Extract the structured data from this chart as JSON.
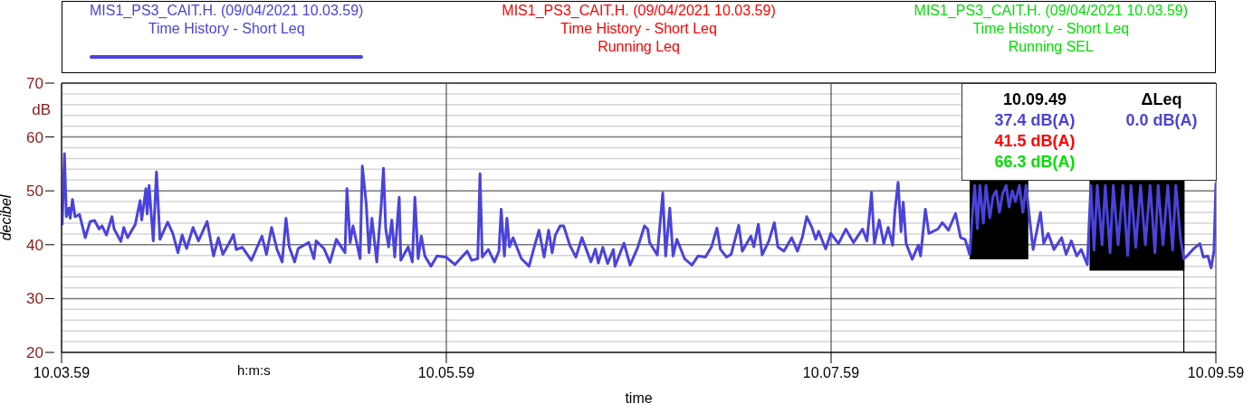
{
  "chart_data": {
    "type": "line",
    "xlabel": "time",
    "ylabel": "decibel",
    "xlim": [
      "2021-04-09T10:03:59",
      "2021-04-09T10:09:59"
    ],
    "xticks": [
      {
        "value": "2021-04-09T10:03:59",
        "label": "10.03.59"
      },
      {
        "value": "2021-04-09T10:05:59",
        "label": "10.05.59"
      },
      {
        "value": "2021-04-09T10:07:59",
        "label": "10.07.59"
      },
      {
        "value": "2021-04-09T10:09:59",
        "label": "10.09.59"
      }
    ],
    "ylim": [
      20,
      70
    ],
    "yticks": [
      20,
      {
        "value": 22,
        "label": null
      },
      {
        "value": 24,
        "label": null
      },
      {
        "value": 26,
        "label": null
      },
      {
        "value": 28,
        "label": null
      },
      30,
      {
        "value": 32,
        "label": null
      },
      {
        "value": 34,
        "label": null
      },
      {
        "value": 36,
        "label": null
      },
      {
        "value": 38,
        "label": null
      },
      40,
      {
        "value": 42,
        "label": null
      },
      {
        "value": 44,
        "label": null
      },
      {
        "value": 46,
        "label": null
      },
      {
        "value": 48,
        "label": null
      },
      50,
      {
        "value": 52,
        "label": null
      },
      {
        "value": 54,
        "label": null
      },
      {
        "value": 56,
        "label": null
      },
      {
        "value": 58,
        "label": null
      },
      60,
      {
        "value": 62,
        "label": null
      },
      {
        "value": 64,
        "label": null
      },
      {
        "value": 66,
        "label": null
      },
      {
        "value": 68,
        "label": null
      },
      70
    ],
    "grid": true,
    "legend": "top",
    "annotations": [
      "dB",
      "h:m:s",
      "37.4 dB(A)",
      "41.5 dB(A)",
      "66.3 dB(A)",
      "ΔLeq",
      "0.0 dB(A)"
    ],
    "ref_lines": [
      {
        "axis": "x",
        "value": "2021-04-09T10:09:49",
        "label": "10.09.49",
        "color": "#000000"
      }
    ],
    "series": [
      {
        "type": "area",
        "color": "#000000",
        "x": [
          "2021-04-09T10:08:42.2",
          "2021-04-09T10:09:00.5",
          "2021-04-09T10:09:10",
          "2021-04-09T10:09:19.6",
          "2021-04-09T10:09:49.2"
        ],
        "values": [
          null,
          null,
          null,
          null,
          null
        ],
        "lower": [
          37.3,
          37.3,
          null,
          35.2,
          35.2
        ],
        "upper": [
          51.9,
          51.9,
          null,
          51.9,
          51.9
        ]
      },
      {
        "name": "MIS1_PS3_CAIT.H. (09/04/2021 10.03.59)\nTime History - Short Leq",
        "color": "#4a43dc",
        "x": [
          "2021-04-09T10:03:59.2",
          "2021-04-09T10:03:59.9",
          "2021-04-09T10:04:00.5",
          "2021-04-09T10:04:01.3",
          "2021-04-09T10:04:01.7",
          "2021-04-09T10:04:02.4",
          "2021-04-09T10:04:03.2",
          "2021-04-09T10:04:04.6",
          "2021-04-09T10:04:06.4",
          "2021-04-09T10:04:07.9",
          "2021-04-09T10:04:09.3",
          "2021-04-09T10:04:10.7",
          "2021-04-09T10:04:11.6",
          "2021-04-09T10:04:13.0",
          "2021-04-09T10:04:14.7",
          "2021-04-09T10:04:15.4",
          "2021-04-09T10:04:17.5",
          "2021-04-09T10:04:18.4",
          "2021-04-09T10:04:19.6",
          "2021-04-09T10:04:22.0",
          "2021-04-09T10:04:23.5",
          "2021-04-09T10:04:24.0",
          "2021-04-09T10:04:25.3",
          "2021-04-09T10:04:25.7",
          "2021-04-09T10:04:26.3",
          "2021-04-09T10:04:27.6",
          "2021-04-09T10:04:28.6",
          "2021-04-09T10:04:29.7",
          "2021-04-09T10:04:32.1",
          "2021-04-09T10:04:33.7",
          "2021-04-09T10:04:35.3",
          "2021-04-09T10:04:36.6",
          "2021-04-09T10:04:38.0",
          "2021-04-09T10:04:40.0",
          "2021-04-09T10:04:41.7",
          "2021-04-09T10:04:44.4",
          "2021-04-09T10:04:46.4",
          "2021-04-09T10:04:47.9",
          "2021-04-09T10:04:49.3",
          "2021-04-09T10:04:51.2",
          "2021-04-09T10:04:52.6",
          "2021-04-09T10:04:53.5",
          "2021-04-09T10:04:55.4",
          "2021-04-09T10:04:58.2",
          "2021-04-09T10:05:01.5",
          "2021-04-09T10:05:02.9",
          "2021-04-09T10:05:04.5",
          "2021-04-09T10:05:06.2",
          "2021-04-09T10:05:07.8",
          "2021-04-09T10:05:09.0",
          "2021-04-09T10:05:10.0",
          "2021-04-09T10:05:11.7",
          "2021-04-09T10:05:12.8",
          "2021-04-09T10:05:16.1",
          "2021-04-09T10:05:17.7",
          "2021-04-09T10:05:18.4",
          "2021-04-09T10:05:20.8",
          "2021-04-09T10:05:22.7",
          "2021-04-09T10:05:24.7",
          "2021-04-09T10:05:27.4",
          "2021-04-09T10:05:28.0",
          "2021-04-09T10:05:29.0",
          "2021-04-09T10:05:29.9",
          "2021-04-09T10:05:32.1",
          "2021-04-09T10:05:32.8",
          "2021-04-09T10:05:34.0",
          "2021-04-09T10:05:34.9",
          "2021-04-09T10:05:35.8",
          "2021-04-09T10:05:37.3",
          "2021-04-09T10:05:38.7",
          "2021-04-09T10:05:39.4",
          "2021-04-09T10:05:40.1",
          "2021-04-09T10:05:41.0",
          "2021-04-09T10:05:42.0",
          "2021-04-09T10:05:42.9",
          "2021-04-09T10:05:44.3",
          "2021-04-09T10:05:44.8",
          "2021-04-09T10:05:47.1",
          "2021-04-09T10:05:48.4",
          "2021-04-09T10:05:49.2",
          "2021-04-09T10:05:50.2",
          "2021-04-09T10:05:51.2",
          "2021-04-09T10:05:52.3",
          "2021-04-09T10:05:54.2",
          "2021-04-09T10:05:56.1",
          "2021-04-09T10:05:58.9",
          "2021-04-09T10:06:01.7",
          "2021-04-09T10:06:05.5",
          "2021-04-09T10:06:06.9",
          "2021-04-09T10:06:08.8",
          "2021-04-09T10:06:09.5",
          "2021-04-09T10:06:10.2",
          "2021-04-09T10:06:12.1",
          "2021-04-09T10:06:14.0",
          "2021-04-09T10:06:15.4",
          "2021-04-09T10:06:16.1",
          "2021-04-09T10:06:17.1",
          "2021-04-09T10:06:17.9",
          "2021-04-09T10:06:18.7",
          "2021-04-09T10:06:19.8",
          "2021-04-09T10:06:22.4",
          "2021-04-09T10:06:24.8",
          "2021-04-09T10:06:26.2",
          "2021-04-09T10:06:27.9",
          "2021-04-09T10:06:29.5",
          "2021-04-09T10:06:30.9",
          "2021-04-09T10:06:32.0",
          "2021-04-09T10:06:33.0",
          "2021-04-09T10:06:34.5",
          "2021-04-09T10:06:35.6",
          "2021-04-09T10:06:37.5",
          "2021-04-09T10:06:39.4",
          "2021-04-09T10:06:41.3",
          "2021-04-09T10:06:44.1",
          "2021-04-09T10:06:45.5",
          "2021-04-09T10:06:46.4",
          "2021-04-09T10:06:47.8",
          "2021-04-09T10:06:49.3",
          "2021-04-09T10:06:51.1",
          "2021-04-09T10:06:51.6",
          "2021-04-09T10:06:54.4",
          "2021-04-09T10:06:56.3",
          "2021-04-09T10:06:58.7",
          "2021-04-09T10:07:00.8",
          "2021-04-09T10:07:01.8",
          "2021-04-09T10:07:02.4",
          "2021-04-09T10:07:04.8",
          "2021-04-09T10:07:06.5",
          "2021-04-09T10:07:07.4",
          "2021-04-09T10:07:08.7",
          "2021-04-09T10:07:09.7",
          "2021-04-09T10:07:10.9",
          "2021-04-09T10:07:13.3",
          "2021-04-09T10:07:15.6",
          "2021-04-09T10:07:17.5",
          "2021-04-09T10:07:19.8",
          "2021-04-09T10:07:21.7",
          "2021-04-09T10:07:23.4",
          "2021-04-09T10:07:24.5",
          "2021-04-09T10:07:26.4",
          "2021-04-09T10:07:27.8",
          "2021-04-09T10:07:30.2",
          "2021-04-09T10:07:31.3",
          "2021-04-09T10:07:34.0",
          "2021-04-09T10:07:34.9",
          "2021-04-09T10:07:36.3",
          "2021-04-09T10:07:37.5",
          "2021-04-09T10:07:39.6",
          "2021-04-09T10:07:41.3",
          "2021-04-09T10:07:42.4",
          "2021-04-09T10:07:44.3",
          "2021-04-09T10:07:46.7",
          "2021-04-09T10:07:48.5",
          "2021-04-09T10:07:50.0",
          "2021-04-09T10:07:51.4",
          "2021-04-09T10:07:53.0",
          "2021-04-09T10:07:54.2",
          "2021-04-09T10:07:55.1",
          "2021-04-09T10:07:57.3",
          "2021-04-09T10:07:58.9",
          "2021-04-09T10:08:01.3",
          "2021-04-09T10:08:03.6",
          "2021-04-09T10:08:06.0",
          "2021-04-09T10:08:08.8",
          "2021-04-09T10:08:10.2",
          "2021-04-09T10:08:11.6",
          "2021-04-09T10:08:12.5",
          "2021-04-09T10:08:14.0",
          "2021-04-09T10:08:15.4",
          "2021-04-09T10:08:16.8",
          "2021-04-09T10:08:18.2",
          "2021-04-09T10:08:18.9",
          "2021-04-09T10:08:19.9",
          "2021-04-09T10:08:20.8",
          "2021-04-09T10:08:21.5",
          "2021-04-09T10:08:22.4",
          "2021-04-09T10:08:24.3",
          "2021-04-09T10:08:26.2",
          "2021-04-09T10:08:26.9",
          "2021-04-09T10:08:28.4",
          "2021-04-09T10:08:29.5",
          "2021-04-09T10:08:32.3",
          "2021-04-09T10:08:33.7",
          "2021-04-09T10:08:35.6",
          "2021-04-09T10:08:37.8",
          "2021-04-09T10:08:39.4",
          "2021-04-09T10:08:40.8",
          "2021-04-09T10:08:42.2",
          "2021-04-09T10:08:43.0",
          "2021-04-09T10:08:43.8",
          "2021-04-09T10:08:44.6",
          "2021-04-09T10:08:45.4",
          "2021-04-09T10:08:46.5",
          "2021-04-09T10:08:47.3",
          "2021-04-09T10:08:48.5",
          "2021-04-09T10:08:49.5",
          "2021-04-09T10:08:50.5",
          "2021-04-09T10:08:51.5",
          "2021-04-09T10:08:52.5",
          "2021-04-09T10:08:53.6",
          "2021-04-09T10:08:54.5",
          "2021-04-09T10:08:55.5",
          "2021-04-09T10:08:56.5",
          "2021-04-09T10:08:57.7",
          "2021-04-09T10:08:58.8",
          "2021-04-09T10:08:59.8",
          "2021-04-09T10:09:01.0",
          "2021-04-09T10:09:02.0",
          "2021-04-09T10:09:04.3",
          "2021-04-09T10:09:05.3",
          "2021-04-09T10:09:06.7",
          "2021-04-09T10:09:08.5",
          "2021-04-09T10:09:10.9",
          "2021-04-09T10:09:12.3",
          "2021-04-09T10:09:13.9",
          "2021-04-09T10:09:15.6",
          "2021-04-09T10:09:17.0",
          "2021-04-09T10:09:18.9",
          "2021-04-09T10:09:20.0",
          "2021-04-09T10:09:21.0",
          "2021-04-09T10:09:22.0",
          "2021-04-09T10:09:23.5",
          "2021-04-09T10:09:24.5",
          "2021-04-09T10:09:26.0",
          "2021-04-09T10:09:27.0",
          "2021-04-09T10:09:28.5",
          "2021-04-09T10:09:30.0",
          "2021-04-09T10:09:31.5",
          "2021-04-09T10:09:32.5",
          "2021-04-09T10:09:34.0",
          "2021-04-09T10:09:35.5",
          "2021-04-09T10:09:37.0",
          "2021-04-09T10:09:38.5",
          "2021-04-09T10:09:40.0",
          "2021-04-09T10:09:41.0",
          "2021-04-09T10:09:42.5",
          "2021-04-09T10:09:44.0",
          "2021-04-09T10:09:45.5",
          "2021-04-09T10:09:46.5",
          "2021-04-09T10:09:48.0",
          "2021-04-09T10:09:49.0",
          "2021-04-09T10:09:50.0",
          "2021-04-09T10:09:51.8",
          "2021-04-09T10:09:54.0",
          "2021-04-09T10:09:55.1",
          "2021-04-09T10:09:56.5",
          "2021-04-09T10:09:57.5",
          "2021-04-09T10:09:58.4",
          "2021-04-09T10:09:59.0"
        ],
        "values": [
          43.8,
          56.9,
          45.2,
          46.8,
          44.9,
          48.4,
          45.2,
          45.6,
          41.3,
          44.3,
          44.5,
          42.9,
          43.5,
          41.8,
          45.2,
          42.9,
          40.6,
          43.2,
          41.3,
          43.8,
          48.2,
          44.6,
          50.4,
          45.7,
          51.0,
          40.7,
          53.5,
          41.0,
          44.2,
          42.1,
          38.5,
          41.8,
          39.3,
          43.2,
          40.7,
          44.3,
          37.9,
          41.3,
          38.2,
          40.2,
          41.9,
          39.1,
          39.5,
          37.1,
          41.6,
          38.2,
          43.2,
          39.1,
          36.8,
          44.9,
          39.6,
          36.8,
          39.3,
          40.4,
          37.4,
          40.7,
          39.3,
          36.7,
          41.0,
          38.5,
          50.4,
          40.4,
          43.5,
          37.4,
          54.6,
          47.7,
          38.5,
          44.9,
          36.8,
          47.4,
          54.2,
          42.9,
          39.6,
          44.6,
          37.7,
          48.8,
          37.1,
          39.6,
          36.8,
          48.8,
          37.4,
          41.6,
          37.9,
          36.0,
          37.9,
          37.7,
          36.3,
          38.8,
          37.1,
          37.4,
          53.2,
          37.7,
          39.1,
          36.8,
          38.8,
          46.6,
          37.9,
          44.9,
          39.6,
          41.3,
          37.4,
          36.0,
          39.1,
          42.7,
          37.7,
          42.7,
          38.5,
          41.8,
          43.5,
          43.5,
          39.9,
          37.7,
          41.3,
          36.8,
          39.2,
          36.6,
          39.5,
          36.5,
          39.1,
          36.0,
          40.3,
          36.2,
          39.5,
          43.5,
          42.9,
          40.4,
          38.1,
          49.6,
          37.9,
          46.8,
          37.9,
          41.0,
          37.4,
          36.2,
          37.9,
          37.7,
          39.6,
          43.1,
          39.1,
          37.7,
          38.2,
          43.6,
          38.8,
          41.6,
          39.6,
          43.8,
          38.1,
          40.7,
          44.1,
          39.6,
          38.8,
          41.3,
          38.8,
          41.3,
          45.2,
          43.2,
          41.0,
          42.5,
          39.2,
          42.1,
          40.2,
          42.9,
          40.4,
          42.9,
          40.7,
          49.7,
          40.2,
          44.6,
          40.2,
          43.2,
          39.9,
          46.3,
          51.6,
          42.4,
          47.9,
          40.2,
          37.3,
          39.9,
          37.9,
          46.6,
          42.1,
          42.9,
          44.1,
          42.7,
          45.8,
          41.3,
          41.0,
          38.2,
          45.0,
          51.0,
          43.0,
          51.0,
          44.0,
          51.0,
          45.0,
          49.0,
          50.0,
          46.0,
          49.5,
          51.0,
          47.0,
          50.0,
          48.0,
          51.0,
          46.0,
          51.0,
          44.3,
          39.1,
          46.0,
          40.2,
          42.1,
          39.1,
          41.3,
          38.2,
          40.7,
          37.9,
          39.1,
          36.3,
          51.0,
          39.0,
          51.0,
          40.0,
          51.0,
          38.5,
          51.0,
          40.0,
          51.0,
          38.0,
          51.0,
          39.5,
          51.0,
          40.0,
          51.0,
          38.5,
          51.0,
          40.0,
          51.0,
          39.0,
          51.0,
          41.0,
          37.4,
          37.9,
          39.1,
          40.2,
          37.7,
          37.9,
          35.7,
          38.8,
          51.3
        ]
      },
      {
        "name": "MIS1_PS3_CAIT.H. (09/04/2021 10.03.59)\nTime History - Short Leq\nRunning Leq",
        "color": "#ff0000"
      },
      {
        "name": "MIS1_PS3_CAIT.H. (09/04/2021 10.03.59)\nTime History - Short Leq\nRunning SEL",
        "color": "#00e000"
      }
    ]
  }
}
